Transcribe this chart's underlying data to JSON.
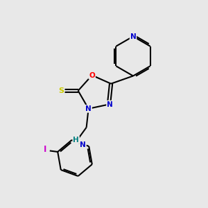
{
  "bg_color": "#e8e8e8",
  "bond_color": "#000000",
  "atom_colors": {
    "N": "#0000cc",
    "O": "#ff0000",
    "S": "#cccc00",
    "I": "#cc00cc",
    "H": "#008080",
    "C": "#000000"
  },
  "lw": 1.5,
  "dbl_off": 0.08
}
